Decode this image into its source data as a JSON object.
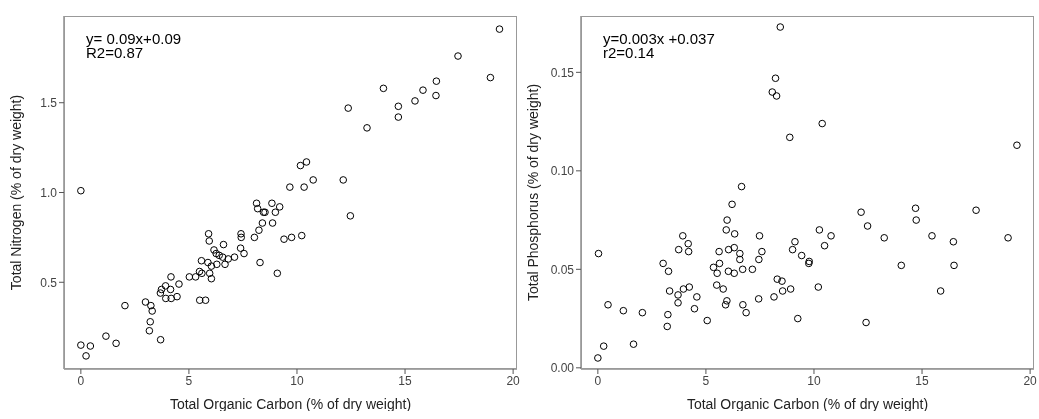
{
  "chart_data": [
    {
      "type": "scatter",
      "xlabel": "Total Organic Carbon (% of dry weight)",
      "ylabel": "Total Nitrogen (% of dry weight)",
      "annotations": [
        "y= 0.09x+0.09",
        "R2=0.87"
      ],
      "marker": "circle",
      "xlim": [
        -0.78,
        20.18
      ],
      "xticks": [
        0,
        5,
        10,
        15,
        20
      ],
      "ylim": [
        0.017,
        1.983
      ],
      "yticks": [
        {
          "value": 0.5,
          "label": "0.5"
        },
        {
          "value": 1,
          "label": "1.0"
        },
        {
          "value": 1.5,
          "label": "1.5"
        }
      ],
      "series": [
        {
          "color": "#000000",
          "x": [
            0,
            0.44,
            0.24,
            1.16,
            1.63,
            2.04,
            2.99,
            3.24,
            3.3,
            3.21,
            3.17,
            3.69,
            3.73,
            3.68,
            3.92,
            3.93,
            4.15,
            4.18,
            4.17,
            4.45,
            4.54,
            5.02,
            5.31,
            5.49,
            5.6,
            5.5,
            5.77,
            5.58,
            5.91,
            5.94,
            5.88,
            5.96,
            6.04,
            6.04,
            6.16,
            6.26,
            6.29,
            6.4,
            6.6,
            6.56,
            6.67,
            6.82,
            7.11,
            7.41,
            7.42,
            7.39,
            7.55,
            8.03,
            8.24,
            8.29,
            8.4,
            8.87,
            9.09,
            9.4,
            9.75,
            10.22,
            12.47,
            8.13,
            8.18,
            8.45,
            8.52,
            8.84,
            9,
            9.2,
            0,
            9.67,
            19.37,
            17.45,
            18.95,
            16.45,
            16.43,
            15.83,
            15.46,
            14.69,
            14.69,
            14,
            13.24,
            12.37,
            12.14,
            10.16,
            10.44,
            10.75,
            10.33
          ],
          "values": [
            0.15,
            0.145,
            0.09,
            0.2,
            0.16,
            0.37,
            0.39,
            0.37,
            0.34,
            0.28,
            0.23,
            0.18,
            0.46,
            0.44,
            0.48,
            0.41,
            0.46,
            0.41,
            0.53,
            0.42,
            0.49,
            0.53,
            0.53,
            0.56,
            0.55,
            0.4,
            0.4,
            0.62,
            0.77,
            0.73,
            0.61,
            0.55,
            0.52,
            0.59,
            0.68,
            0.66,
            0.6,
            0.65,
            0.71,
            0.64,
            0.6,
            0.63,
            0.64,
            0.77,
            0.75,
            0.69,
            0.66,
            0.75,
            0.79,
            0.61,
            0.83,
            0.83,
            0.55,
            0.74,
            0.75,
            0.76,
            0.87,
            0.94,
            0.91,
            0.89,
            0.89,
            0.94,
            0.89,
            0.92,
            1.01,
            1.03,
            1.91,
            1.76,
            1.64,
            1.62,
            1.54,
            1.57,
            1.51,
            1.48,
            1.42,
            1.58,
            1.36,
            1.47,
            1.07,
            1.15,
            1.17,
            1.07,
            1.03
          ]
        }
      ]
    },
    {
      "type": "scatter",
      "xlabel": "Total Organic Carbon (% of dry weight)",
      "ylabel": "Total Phosphorus (% of dry weight)",
      "annotations": [
        "y=0.003x +0.037",
        "r2=0.14"
      ],
      "marker": "circle",
      "xlim": [
        -0.78,
        20.18
      ],
      "xticks": [
        0,
        5,
        10,
        15,
        20
      ],
      "ylim": [
        -0.0006,
        0.1786
      ],
      "yticks": [
        {
          "value": 0,
          "label": "0.00"
        },
        {
          "value": 0.05,
          "label": "0.05"
        },
        {
          "value": 0.1,
          "label": "0.10"
        },
        {
          "value": 0.15,
          "label": "0.15"
        }
      ],
      "series": [
        {
          "color": "#000000",
          "x": [
            0.03,
            0,
            0.27,
            0.47,
            1.18,
            1.65,
            2.06,
            3.02,
            3.27,
            3.32,
            3.24,
            3.21,
            3.71,
            3.71,
            3.74,
            3.96,
            4.18,
            4.2,
            4.23,
            4.47,
            4.58,
            5.06,
            5.35,
            5.52,
            5.63,
            5.5,
            5.61,
            5.8,
            5.97,
            5.91,
            6.04,
            6.05,
            6.31,
            6.31,
            6.57,
            6.57,
            6.7,
            6.71,
            6.86,
            7.15,
            7.45,
            7.59,
            7.44,
            8.15,
            8.3,
            8.52,
            8.55,
            8.92,
            9.01,
            9.12,
            9.25,
            9.43,
            9.76,
            9.78,
            10.2,
            10.49,
            12.41,
            14.04,
            15.86,
            16.45,
            16.48,
            18.98,
            8.44,
            8.22,
            8.07,
            8.27,
            8.88,
            6.65,
            6.21,
            5.98,
            5.94,
            6.33,
            3.93,
            7.48,
            10.38,
            19.39,
            12.18,
            14.7,
            14.73,
            17.5,
            12.48,
            10.25,
            10.79,
            13.25,
            15.46
          ],
          "values": [
            0.058,
            0.005,
            0.011,
            0.032,
            0.029,
            0.012,
            0.028,
            0.053,
            0.049,
            0.039,
            0.027,
            0.021,
            0.037,
            0.033,
            0.06,
            0.04,
            0.063,
            0.059,
            0.041,
            0.03,
            0.036,
            0.024,
            0.051,
            0.048,
            0.053,
            0.042,
            0.059,
            0.04,
            0.034,
            0.032,
            0.049,
            0.06,
            0.048,
            0.061,
            0.058,
            0.055,
            0.05,
            0.032,
            0.028,
            0.05,
            0.055,
            0.059,
            0.035,
            0.036,
            0.045,
            0.044,
            0.039,
            0.04,
            0.06,
            0.064,
            0.025,
            0.057,
            0.053,
            0.054,
            0.041,
            0.062,
            0.023,
            0.052,
            0.039,
            0.064,
            0.052,
            0.066,
            0.173,
            0.147,
            0.14,
            0.138,
            0.117,
            0.092,
            0.083,
            0.075,
            0.07,
            0.068,
            0.067,
            0.067,
            0.124,
            0.113,
            0.079,
            0.081,
            0.075,
            0.08,
            0.072,
            0.07,
            0.067,
            0.066,
            0.067
          ]
        }
      ]
    }
  ]
}
